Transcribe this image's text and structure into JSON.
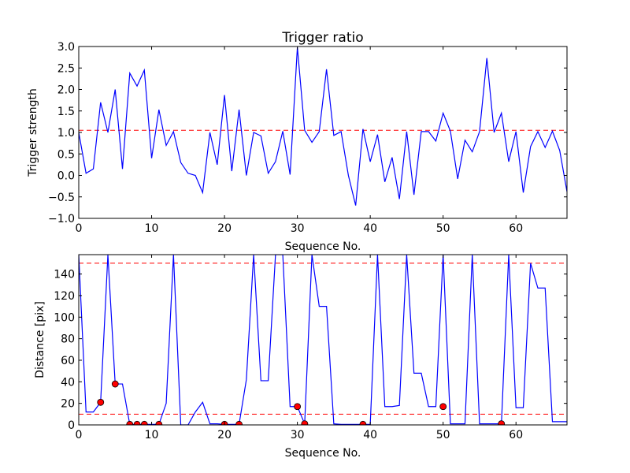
{
  "chart_data": [
    {
      "type": "line",
      "title": "Trigger ratio",
      "xlabel": "Sequence No.",
      "ylabel": "Trigger strength",
      "xlim": [
        0,
        67
      ],
      "ylim": [
        -1.0,
        3.0
      ],
      "xticks": [
        0,
        10,
        20,
        30,
        40,
        50,
        60
      ],
      "yticks": [
        -1.0,
        -0.5,
        0.0,
        0.5,
        1.0,
        1.5,
        2.0,
        2.5,
        3.0
      ],
      "grid": false,
      "colors": {
        "series": "#0000ff",
        "threshold": "#ff0000"
      },
      "threshold_lines": [
        1.05
      ],
      "series": [
        {
          "x": [
            0,
            1,
            2,
            3,
            4,
            5,
            6,
            7,
            8,
            9,
            10,
            11,
            12,
            13,
            14,
            15,
            16,
            17,
            18,
            19,
            20,
            21,
            22,
            23,
            24,
            25,
            26,
            27,
            28,
            29,
            30,
            31,
            32,
            33,
            34,
            35,
            36,
            37,
            38,
            39,
            40,
            41,
            42,
            43,
            44,
            45,
            46,
            47,
            48,
            49,
            50,
            51,
            52,
            53,
            54,
            55,
            56,
            57,
            58,
            59,
            60,
            61,
            62,
            63,
            64,
            65,
            66,
            67
          ],
          "values": [
            1.0,
            0.05,
            0.15,
            1.7,
            1.0,
            2.0,
            0.15,
            2.38,
            2.08,
            2.45,
            0.4,
            1.53,
            0.7,
            1.02,
            0.3,
            0.05,
            0.0,
            -0.4,
            1.0,
            0.25,
            1.87,
            0.1,
            1.53,
            0.0,
            1.0,
            0.92,
            0.05,
            0.32,
            1.03,
            0.02,
            2.98,
            1.05,
            0.77,
            1.02,
            2.47,
            0.93,
            1.02,
            0.0,
            -0.7,
            1.08,
            0.32,
            0.95,
            -0.15,
            0.42,
            -0.55,
            1.02,
            -0.45,
            1.02,
            1.02,
            0.8,
            1.45,
            1.03,
            -0.08,
            0.82,
            0.55,
            1.02,
            2.73,
            1.0,
            1.45,
            0.32,
            1.02,
            -0.4,
            0.67,
            1.02,
            0.65,
            1.03,
            0.58,
            -0.38
          ]
        }
      ]
    },
    {
      "type": "line",
      "title": "",
      "xlabel": "Sequence No.",
      "ylabel": "Distance [pix]",
      "xlim": [
        0,
        67
      ],
      "ylim": [
        0,
        158
      ],
      "xticks": [
        0,
        10,
        20,
        30,
        40,
        50,
        60
      ],
      "yticks": [
        0,
        20,
        40,
        60,
        80,
        100,
        120,
        140
      ],
      "grid": false,
      "colors": {
        "series": "#0000ff",
        "threshold": "#ff0000",
        "marker": "#ff0000"
      },
      "threshold_lines": [
        150,
        10
      ],
      "series": [
        {
          "x": [
            0,
            1,
            2,
            3,
            4,
            5,
            6,
            7,
            8,
            9,
            10,
            11,
            12,
            13,
            14,
            15,
            16,
            17,
            18,
            19,
            20,
            21,
            22,
            23,
            24,
            25,
            26,
            27,
            28,
            29,
            30,
            31,
            32,
            33,
            34,
            35,
            36,
            37,
            38,
            39,
            40,
            41,
            42,
            43,
            44,
            45,
            46,
            47,
            48,
            49,
            50,
            51,
            52,
            53,
            54,
            55,
            56,
            57,
            58,
            59,
            60,
            61,
            62,
            63,
            64,
            65,
            66,
            67
          ],
          "values": [
            158,
            12,
            12,
            21,
            158,
            38,
            38,
            0.5,
            0.5,
            0.5,
            0.5,
            0.5,
            20,
            158,
            0,
            0,
            12,
            21,
            1,
            1,
            0.5,
            0.5,
            0.5,
            42,
            158,
            41,
            41,
            158,
            158,
            17,
            17,
            1,
            158,
            110,
            110,
            1,
            0.5,
            0.5,
            0.5,
            0.5,
            0.5,
            158,
            17,
            17,
            18,
            158,
            48,
            48,
            17,
            17,
            158,
            1,
            1,
            1,
            158,
            1,
            1,
            1,
            1,
            158,
            16,
            16,
            150,
            127,
            127,
            3,
            3,
            3
          ]
        }
      ],
      "markers": {
        "x": [
          3,
          5,
          7,
          8,
          9,
          11,
          20,
          22,
          30,
          31,
          39,
          50,
          58
        ],
        "values": [
          21,
          38,
          0.5,
          0.5,
          0.5,
          0.5,
          0.5,
          0.5,
          17,
          1,
          0.5,
          17,
          1
        ]
      }
    }
  ]
}
